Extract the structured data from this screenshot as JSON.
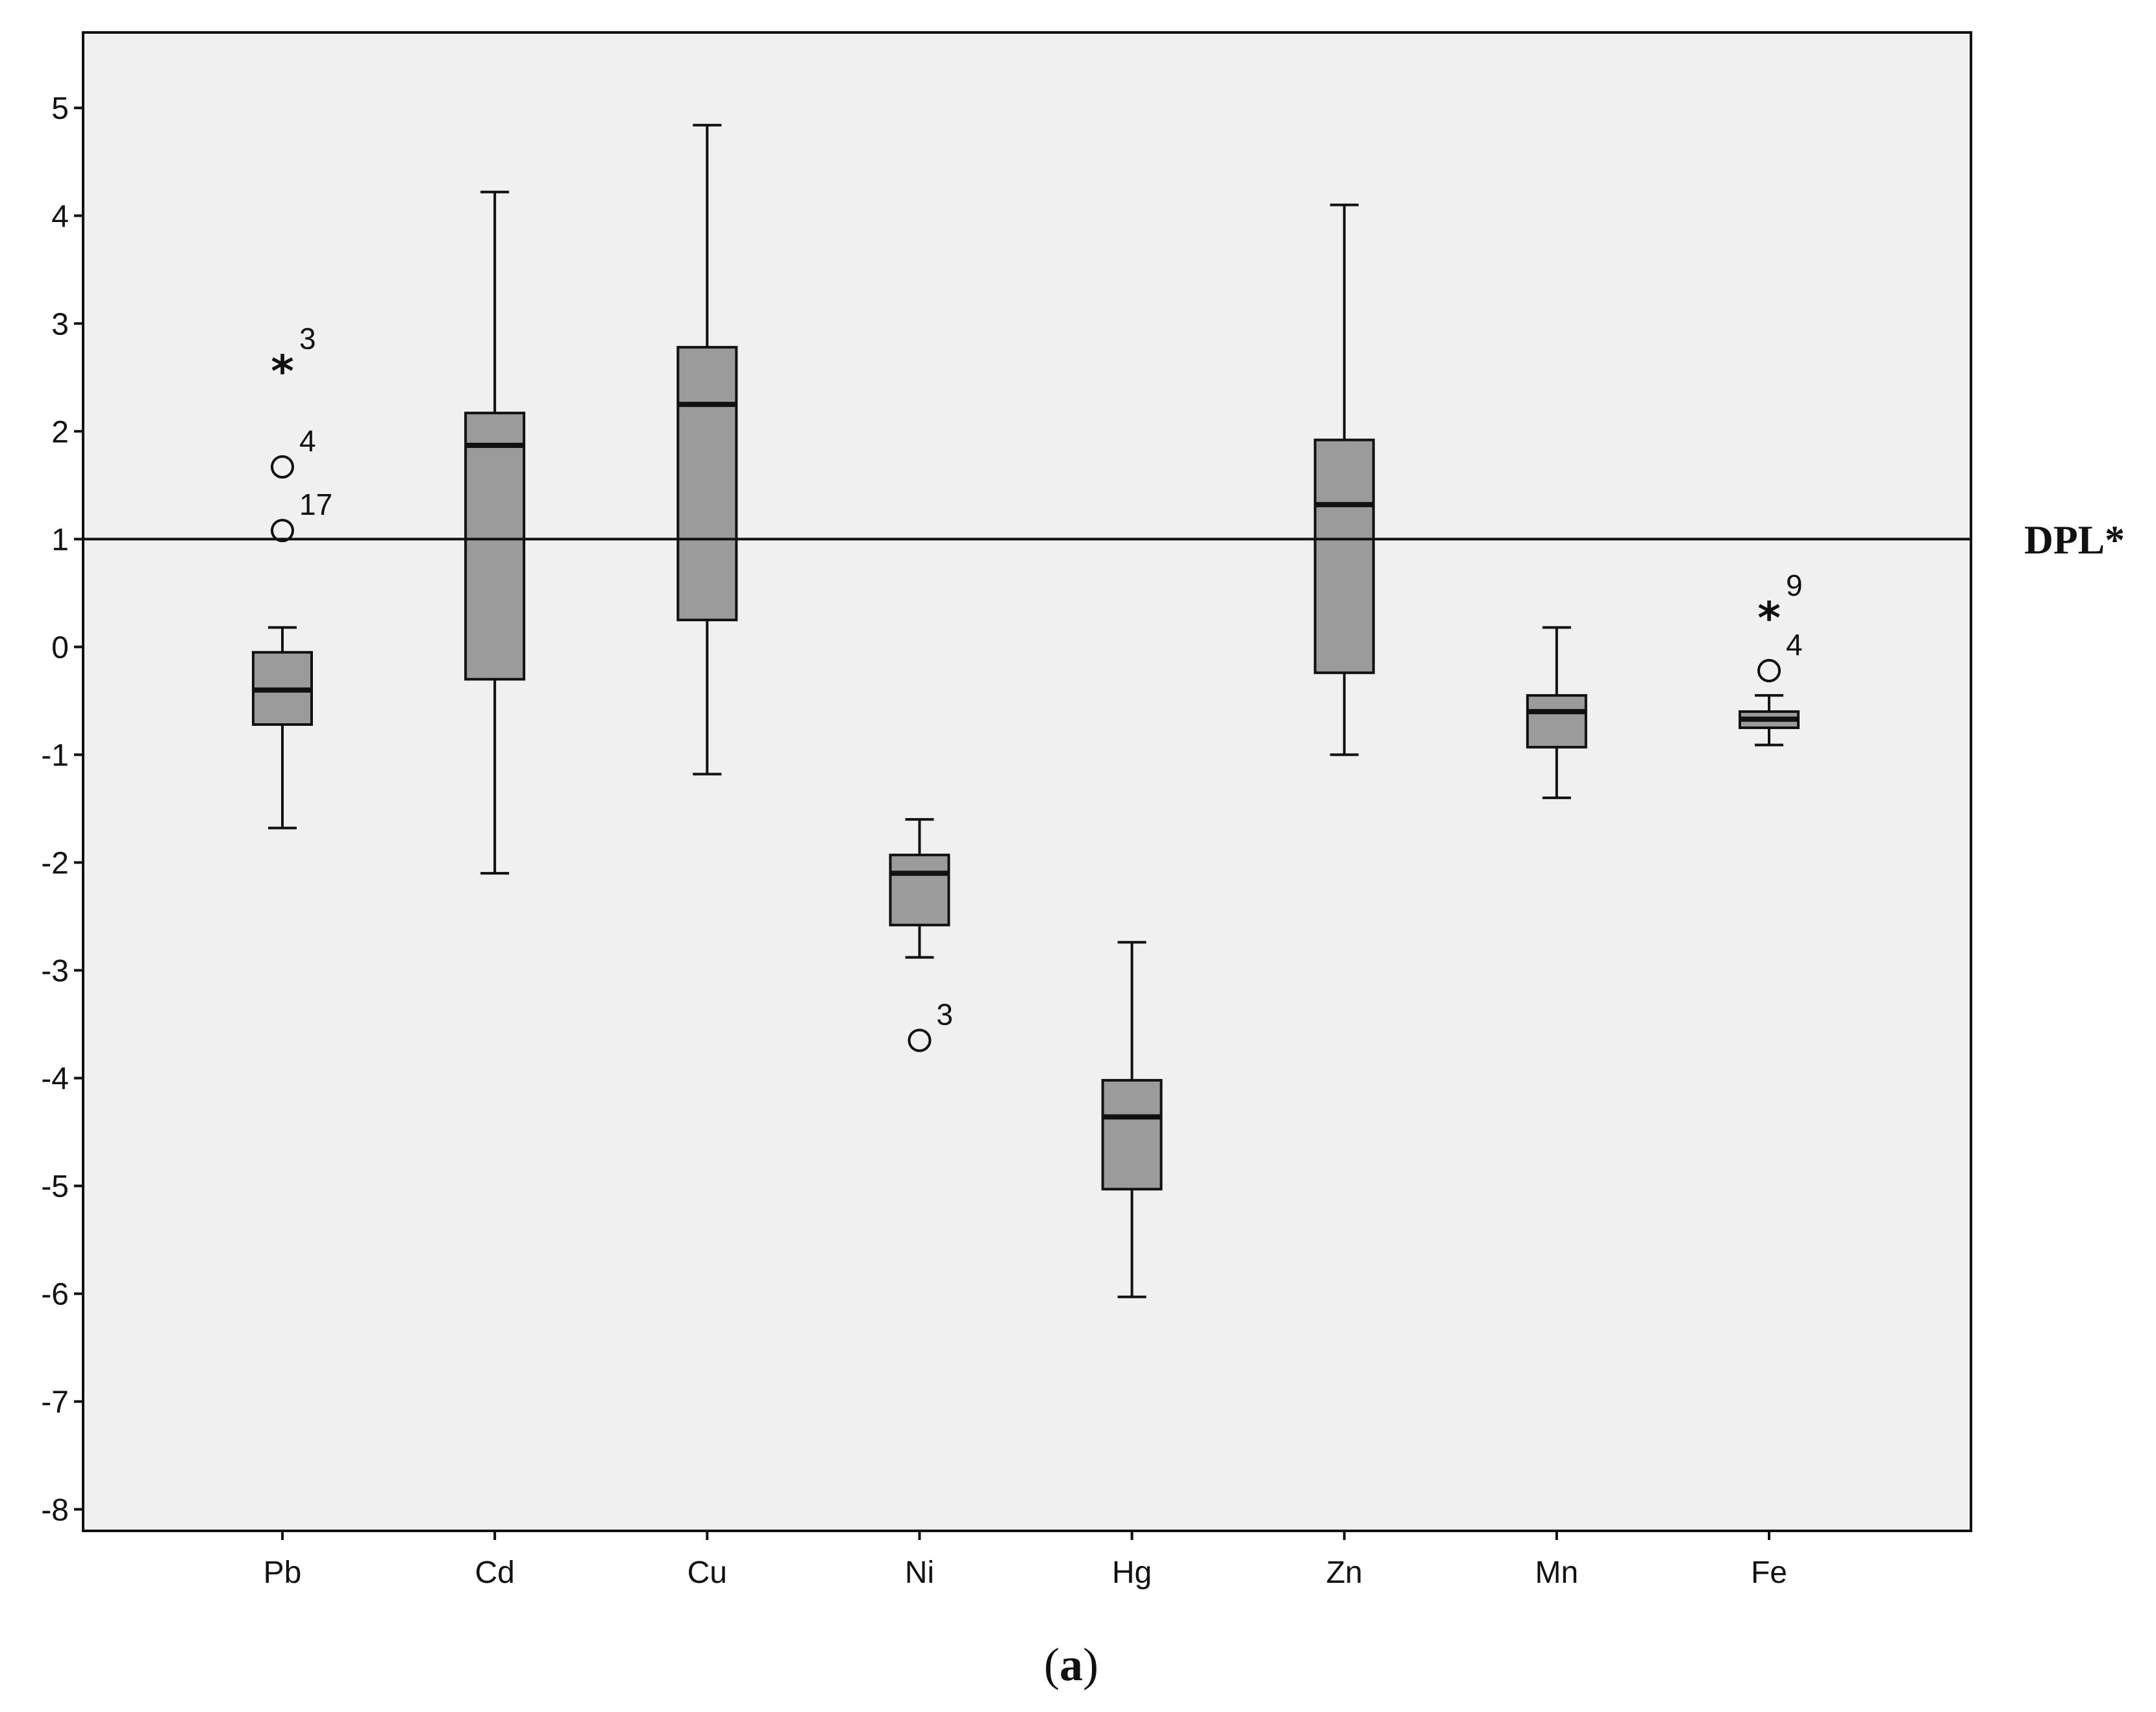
{
  "chart_data": {
    "type": "box",
    "ylim": [
      -8.2,
      5.7
    ],
    "yticks": [
      5,
      4,
      3,
      2,
      1,
      0,
      -1,
      -2,
      -3,
      -4,
      -5,
      -6,
      -7,
      -8
    ],
    "categories": [
      "Pb",
      "Cd",
      "Cu",
      "Ni",
      "Hg",
      "Zn",
      "Mn",
      "Fe"
    ],
    "boxes": [
      {
        "category": "Pb",
        "whisker_low": -1.68,
        "q1": -0.72,
        "median": -0.4,
        "q3": -0.05,
        "whisker_high": 0.18,
        "outliers": [
          {
            "value": 2.62,
            "label": "3",
            "marker": "star"
          },
          {
            "value": 1.67,
            "label": "4",
            "marker": "circle"
          },
          {
            "value": 1.08,
            "label": "17",
            "marker": "circle"
          }
        ]
      },
      {
        "category": "Cd",
        "whisker_low": -2.1,
        "q1": -0.3,
        "median": 1.87,
        "q3": 2.17,
        "whisker_high": 4.22,
        "outliers": []
      },
      {
        "category": "Cu",
        "whisker_low": -1.18,
        "q1": 0.25,
        "median": 2.25,
        "q3": 2.78,
        "whisker_high": 4.84,
        "outliers": []
      },
      {
        "category": "Ni",
        "whisker_low": -2.88,
        "q1": -2.58,
        "median": -2.1,
        "q3": -1.93,
        "whisker_high": -1.6,
        "outliers": [
          {
            "value": -3.65,
            "label": "3",
            "marker": "circle"
          }
        ]
      },
      {
        "category": "Hg",
        "whisker_low": -6.03,
        "q1": -5.03,
        "median": -4.36,
        "q3": -4.02,
        "whisker_high": -2.74,
        "outliers": []
      },
      {
        "category": "Zn",
        "whisker_low": -1.0,
        "q1": -0.24,
        "median": 1.32,
        "q3": 1.92,
        "whisker_high": 4.1,
        "outliers": []
      },
      {
        "category": "Mn",
        "whisker_low": -1.4,
        "q1": -0.93,
        "median": -0.6,
        "q3": -0.45,
        "whisker_high": 0.18,
        "outliers": []
      },
      {
        "category": "Fe",
        "whisker_low": -0.91,
        "q1": -0.75,
        "median": -0.67,
        "q3": -0.6,
        "whisker_high": -0.45,
        "outliers": [
          {
            "value": 0.33,
            "label": "9",
            "marker": "star"
          },
          {
            "value": -0.22,
            "label": "4",
            "marker": "circle"
          }
        ]
      }
    ],
    "reference_line": {
      "value": 1.0,
      "label": "DPL*"
    },
    "caption": {
      "open": "(",
      "letter": "a",
      "close": ")"
    },
    "colors": {
      "plot_background": "#f0f0f0",
      "box_fill": "#9b9b9b",
      "stroke": "#111111",
      "page_background": "#ffffff"
    },
    "grid": false,
    "legend": "none"
  }
}
